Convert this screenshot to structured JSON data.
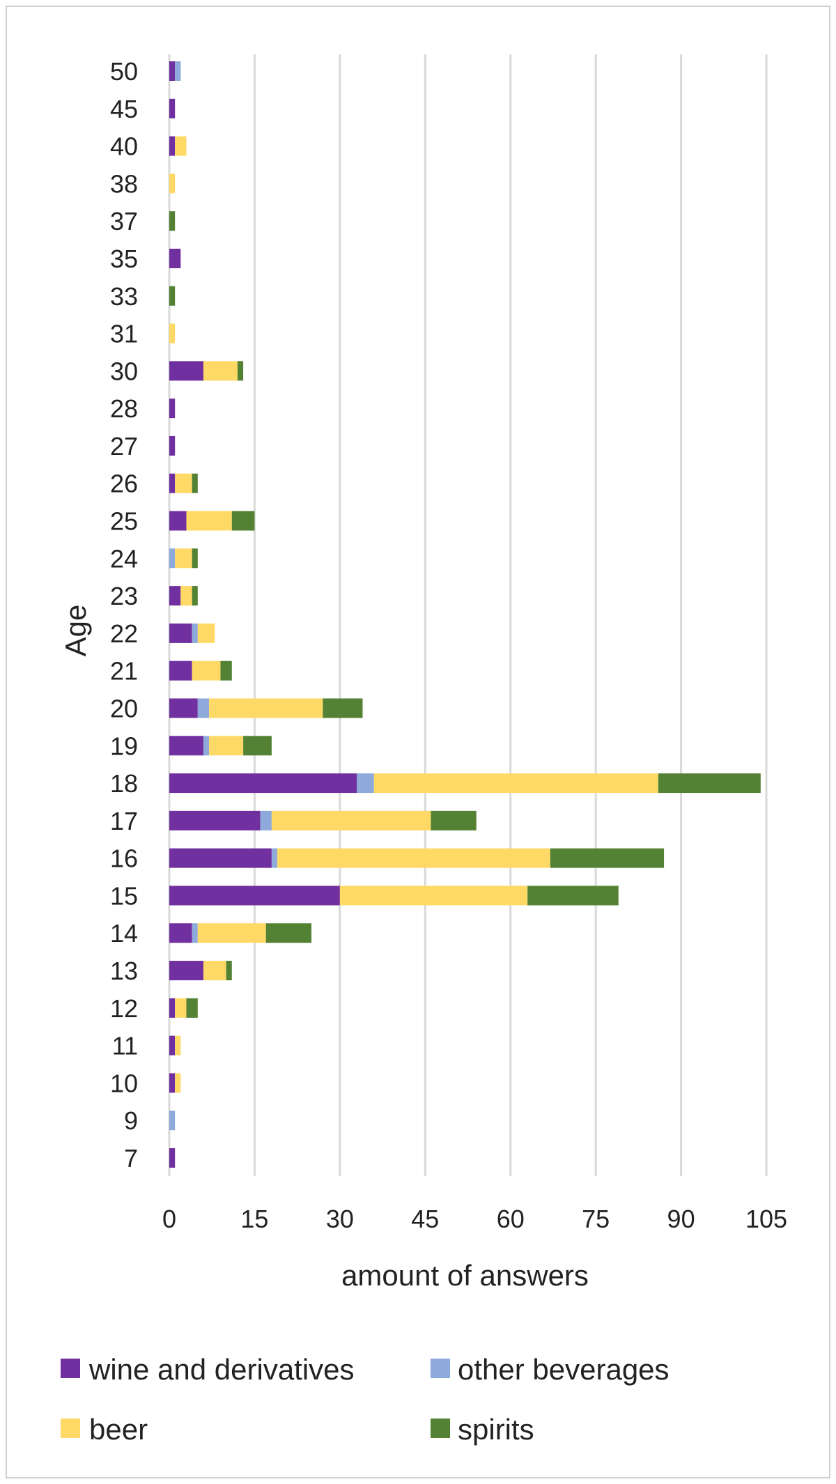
{
  "chart_data": {
    "type": "bar",
    "orientation": "horizontal",
    "stacked": true,
    "categories": [
      "7",
      "9",
      "10",
      "11",
      "12",
      "13",
      "14",
      "15",
      "16",
      "17",
      "18",
      "19",
      "20",
      "21",
      "22",
      "23",
      "24",
      "25",
      "26",
      "27",
      "28",
      "30",
      "31",
      "33",
      "35",
      "37",
      "38",
      "40",
      "45",
      "50"
    ],
    "series": [
      {
        "name": "wine and derivatives",
        "color": "#7030a0",
        "values": [
          1,
          0,
          1,
          1,
          1,
          6,
          4,
          30,
          18,
          16,
          33,
          6,
          5,
          4,
          4,
          2,
          0,
          3,
          1,
          1,
          1,
          6,
          0,
          0,
          2,
          0,
          0,
          1,
          1,
          1
        ]
      },
      {
        "name": "other beverages",
        "color": "#8eaadb",
        "values": [
          0,
          1,
          0,
          0,
          0,
          0,
          1,
          0,
          1,
          2,
          3,
          1,
          2,
          0,
          1,
          0,
          1,
          0,
          0,
          0,
          0,
          0,
          0,
          0,
          0,
          0,
          0,
          0,
          0,
          1
        ]
      },
      {
        "name": "beer",
        "color": "#ffd966",
        "values": [
          0,
          0,
          1,
          1,
          2,
          4,
          12,
          33,
          48,
          28,
          50,
          6,
          20,
          5,
          3,
          2,
          3,
          8,
          3,
          0,
          0,
          6,
          1,
          0,
          0,
          0,
          1,
          2,
          0,
          0
        ]
      },
      {
        "name": "spirits",
        "color": "#548235",
        "values": [
          0,
          0,
          0,
          0,
          2,
          1,
          8,
          16,
          20,
          8,
          18,
          5,
          7,
          2,
          0,
          1,
          1,
          4,
          1,
          0,
          0,
          1,
          0,
          1,
          0,
          1,
          0,
          0,
          0,
          0
        ]
      }
    ],
    "xlabel": "amount of answers",
    "ylabel": "Age",
    "xlim": [
      0,
      105
    ],
    "xticks": [
      "0",
      "15",
      "30",
      "45",
      "60",
      "75",
      "90",
      "105"
    ],
    "grid": "vertical",
    "legend_position": "bottom"
  }
}
